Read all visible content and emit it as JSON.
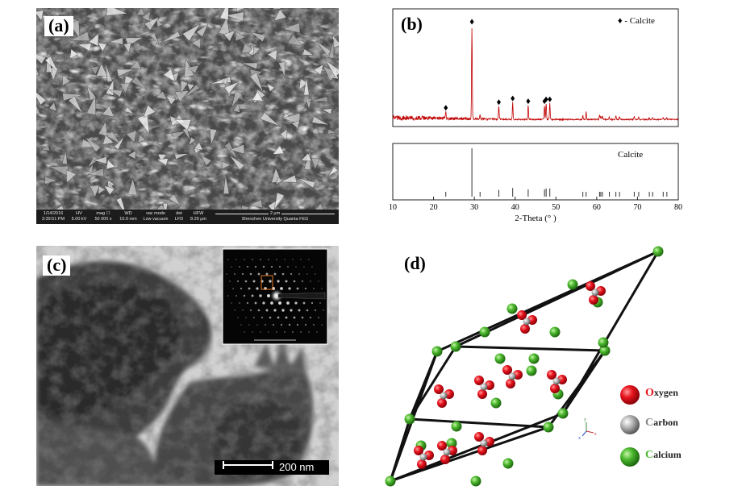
{
  "panels": {
    "a": {
      "label": "(a)",
      "info_bar": {
        "date": "1/14/2016",
        "time": "3:39:51 PM",
        "hv_label": "HV",
        "hv": "5.00 kV",
        "mag_label": "mag ☐",
        "mag": "50 000 x",
        "wd_label": "WD",
        "wd": "10.0 mm",
        "vac_label": "vac mode",
        "vac": "Low vacuum",
        "det_label": "det",
        "det": "LFD",
        "hfw_label": "HFW",
        "hfw": "8.29 μm",
        "scale": "2 μm",
        "instrument": "Shenzhen University Quanta FEG"
      }
    },
    "b": {
      "label": "(b)",
      "legend": "♦ - Calcite",
      "reference_label": "Calcite"
    },
    "c": {
      "label": "(c)",
      "scale": "200 nm"
    },
    "d": {
      "label": "(d)",
      "legend": [
        {
          "first": "O",
          "rest": "xygen",
          "color": "#e8141e"
        },
        {
          "first": "C",
          "rest": "arbon",
          "color": "#9a9a9a"
        },
        {
          "first": "C",
          "rest": "alcium",
          "color": "#4cb82e"
        }
      ],
      "axis_labels": {
        "x": "x",
        "y": "y",
        "z": "z"
      }
    }
  },
  "chart_data": {
    "type": "line",
    "title": "",
    "xlabel": "2-Theta (° )",
    "ylabel": "",
    "xlim": [
      10,
      80
    ],
    "xticks": [
      10,
      20,
      30,
      40,
      50,
      60,
      70,
      80
    ],
    "series": [
      {
        "name": "Calcite",
        "peaks_2theta": [
          23.0,
          29.4,
          31.4,
          36.0,
          39.4,
          43.2,
          47.2,
          47.6,
          48.5,
          56.6,
          57.4,
          60.7,
          61.0,
          61.4,
          63.1,
          64.7,
          65.6,
          69.2,
          70.3,
          72.9,
          73.7,
          76.3,
          77.2,
          81.5
        ],
        "peaks_rel_intensity": [
          8,
          100,
          5,
          14,
          18,
          15,
          15,
          17,
          17,
          4,
          8,
          4,
          3,
          4,
          3,
          4,
          3,
          3,
          3,
          2,
          2,
          2,
          2,
          2
        ]
      }
    ],
    "markers_2theta": [
      23.0,
      29.4,
      36.0,
      39.4,
      43.2,
      47.2,
      47.6,
      48.5
    ]
  }
}
